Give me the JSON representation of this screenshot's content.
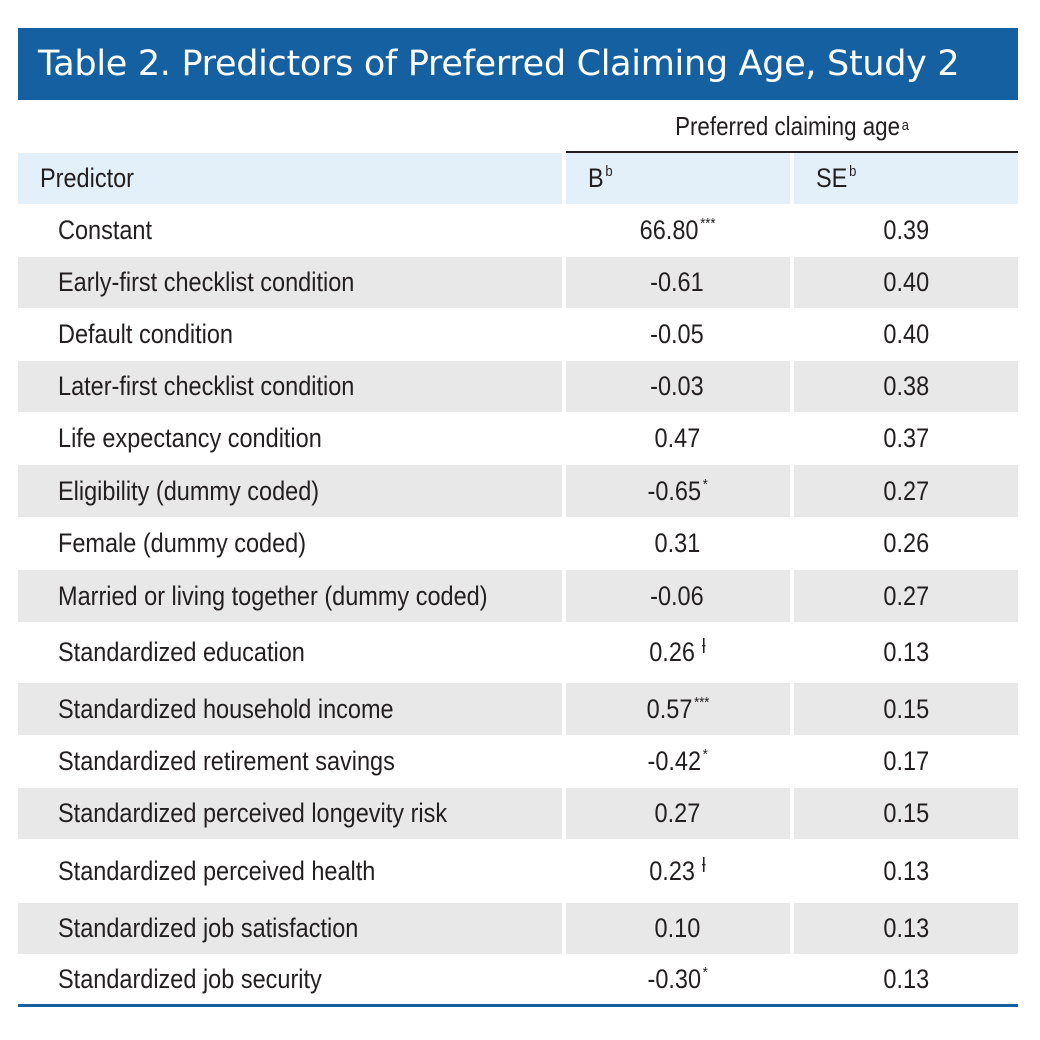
{
  "title": "Table 2. Predictors of Preferred Claiming Age, Study 2",
  "group_header": {
    "label": "Preferred claiming age",
    "sup": "a"
  },
  "columns": {
    "predictor": "Predictor",
    "b": "B",
    "b_sup": "b",
    "se": "SE",
    "se_sup": "b"
  },
  "rows": [
    {
      "predictor": "Constant",
      "b": "66.80",
      "b_sig": "***",
      "se": "0.39"
    },
    {
      "predictor": "Early-first checklist condition",
      "b": "-0.61",
      "b_sig": "",
      "se": "0.40"
    },
    {
      "predictor": "Default condition",
      "b": "-0.05",
      "b_sig": "",
      "se": "0.40"
    },
    {
      "predictor": "Later-first checklist condition",
      "b": "-0.03",
      "b_sig": "",
      "se": "0.38"
    },
    {
      "predictor": "Life expectancy condition",
      "b": "0.47",
      "b_sig": "",
      "se": "0.37"
    },
    {
      "predictor": "Eligibility (dummy coded)",
      "b": "-0.65",
      "b_sig": "*",
      "se": "0.27"
    },
    {
      "predictor": "Female (dummy coded)",
      "b": "0.31",
      "b_sig": "",
      "se": "0.26"
    },
    {
      "predictor": "Married or living together (dummy coded)",
      "b": "-0.06",
      "b_sig": "",
      "se": "0.27"
    },
    {
      "predictor": "Standardized education",
      "b": "0.26",
      "b_sig": "ƚ",
      "se": "0.13"
    },
    {
      "predictor": "Standardized household income",
      "b": "0.57",
      "b_sig": "***",
      "se": "0.15"
    },
    {
      "predictor": "Standardized retirement savings",
      "b": "-0.42",
      "b_sig": "*",
      "se": "0.17"
    },
    {
      "predictor": "Standardized perceived longevity risk",
      "b": "0.27",
      "b_sig": "",
      "se": "0.15"
    },
    {
      "predictor": "Standardized perceived health",
      "b": "0.23",
      "b_sig": "ƚ",
      "se": "0.13"
    },
    {
      "predictor": "Standardized job satisfaction",
      "b": "0.10",
      "b_sig": "",
      "se": "0.13"
    },
    {
      "predictor": "Standardized job security",
      "b": "-0.30",
      "b_sig": "*",
      "se": "0.13"
    }
  ],
  "colors": {
    "title_bg": "#1560a0",
    "header_bg": "#e3f0fa",
    "stripe": "#e8e8e8"
  }
}
